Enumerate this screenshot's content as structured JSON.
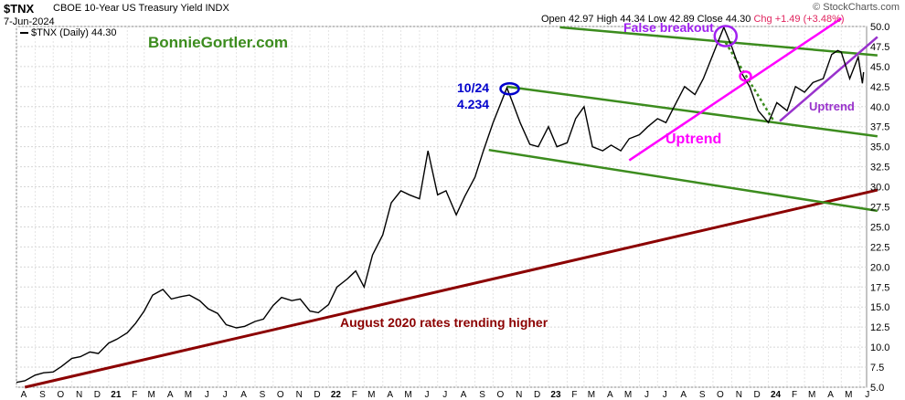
{
  "header": {
    "ticker": "$TNX",
    "description": "CBOE 10-Year US Treasury Yield INDX",
    "date": "7-Jun-2024",
    "watermark": "© StockCharts.com",
    "ohlc": {
      "open": "Open 42.97",
      "high": "High 44.34",
      "low": "Low 42.89",
      "close": "Close 44.30",
      "change": "Chg +1.49 (+3.48%)"
    },
    "legend": "$TNX (Daily) 44.30"
  },
  "annotations": {
    "site": "BonnieGortler.com",
    "peak_date": "10/24",
    "peak_value": "4.234",
    "false_breakout": "False breakout",
    "uptrend_main": "Uptrend",
    "uptrend_recent": "Uptrend",
    "long_trend": "August 2020 rates trending higher"
  },
  "colors": {
    "price": "#000000",
    "channel": "#3c8c1e",
    "long_trend": "#8b0000",
    "uptrend_main": "#ff00ff",
    "uptrend_recent": "#9932cc",
    "peak_marker": "#0000cc",
    "false_breakout": "#a020f0",
    "watermark_green": "#3c8c1e"
  },
  "chart_data": {
    "type": "line",
    "title": "$TNX CBOE 10-Year US Treasury Yield INDX",
    "ylim": [
      5.0,
      50.0
    ],
    "y_axis_side": "right",
    "y_ticks": [
      "5.0",
      "7.5",
      "10.0",
      "12.5",
      "15.0",
      "17.5",
      "20.0",
      "22.5",
      "25.0",
      "27.5",
      "30.0",
      "32.5",
      "35.0",
      "37.5",
      "40.0",
      "42.5",
      "45.0",
      "47.5",
      "50.0"
    ],
    "x_ticks": [
      "A",
      "S",
      "O",
      "N",
      "D",
      "21",
      "F",
      "M",
      "A",
      "M",
      "J",
      "J",
      "A",
      "S",
      "O",
      "N",
      "D",
      "22",
      "F",
      "M",
      "A",
      "M",
      "J",
      "J",
      "A",
      "S",
      "O",
      "N",
      "D",
      "23",
      "F",
      "M",
      "A",
      "M",
      "J",
      "J",
      "A",
      "S",
      "O",
      "N",
      "D",
      "24",
      "F",
      "M",
      "A",
      "M",
      "J"
    ],
    "x_start": "2020-08",
    "x_end": "2024-06",
    "series": [
      {
        "values": [
          [
            "2020-08-01",
            5.6
          ],
          [
            "2020-08-15",
            5.8
          ],
          [
            "2020-09-01",
            6.5
          ],
          [
            "2020-09-15",
            6.8
          ],
          [
            "2020-10-01",
            6.9
          ],
          [
            "2020-10-15",
            7.6
          ],
          [
            "2020-11-01",
            8.6
          ],
          [
            "2020-11-15",
            8.8
          ],
          [
            "2020-12-01",
            9.4
          ],
          [
            "2020-12-15",
            9.2
          ],
          [
            "2021-01-01",
            10.5
          ],
          [
            "2021-01-15",
            11.0
          ],
          [
            "2021-02-01",
            11.8
          ],
          [
            "2021-02-15",
            13.0
          ],
          [
            "2021-03-01",
            14.5
          ],
          [
            "2021-03-15",
            16.5
          ],
          [
            "2021-04-01",
            17.2
          ],
          [
            "2021-04-15",
            16.0
          ],
          [
            "2021-05-01",
            16.3
          ],
          [
            "2021-05-15",
            16.5
          ],
          [
            "2021-06-01",
            15.8
          ],
          [
            "2021-06-15",
            14.8
          ],
          [
            "2021-07-01",
            14.2
          ],
          [
            "2021-07-15",
            12.8
          ],
          [
            "2021-08-01",
            12.4
          ],
          [
            "2021-08-15",
            12.6
          ],
          [
            "2021-09-01",
            13.2
          ],
          [
            "2021-09-15",
            13.5
          ],
          [
            "2021-10-01",
            15.2
          ],
          [
            "2021-10-15",
            16.2
          ],
          [
            "2021-11-01",
            15.8
          ],
          [
            "2021-11-15",
            16.0
          ],
          [
            "2021-12-01",
            14.5
          ],
          [
            "2021-12-15",
            14.3
          ],
          [
            "2022-01-01",
            15.3
          ],
          [
            "2022-01-15",
            17.5
          ],
          [
            "2022-02-01",
            18.5
          ],
          [
            "2022-02-15",
            19.5
          ],
          [
            "2022-03-01",
            17.5
          ],
          [
            "2022-03-15",
            21.5
          ],
          [
            "2022-04-01",
            24.0
          ],
          [
            "2022-04-15",
            28.0
          ],
          [
            "2022-05-01",
            29.5
          ],
          [
            "2022-05-15",
            29.0
          ],
          [
            "2022-06-01",
            28.5
          ],
          [
            "2022-06-15",
            34.5
          ],
          [
            "2022-07-01",
            29.0
          ],
          [
            "2022-07-15",
            29.5
          ],
          [
            "2022-08-01",
            26.5
          ],
          [
            "2022-08-15",
            28.8
          ],
          [
            "2022-09-01",
            31.2
          ],
          [
            "2022-09-15",
            34.5
          ],
          [
            "2022-10-01",
            38.0
          ],
          [
            "2022-10-24",
            42.34
          ],
          [
            "2022-11-01",
            40.8
          ],
          [
            "2022-11-15",
            38.0
          ],
          [
            "2022-12-01",
            35.3
          ],
          [
            "2022-12-15",
            35.0
          ],
          [
            "2023-01-01",
            37.5
          ],
          [
            "2023-01-15",
            35.0
          ],
          [
            "2023-02-01",
            35.5
          ],
          [
            "2023-02-15",
            38.5
          ],
          [
            "2023-03-01",
            40.0
          ],
          [
            "2023-03-15",
            35.0
          ],
          [
            "2023-04-01",
            34.5
          ],
          [
            "2023-04-15",
            35.2
          ],
          [
            "2023-05-01",
            34.5
          ],
          [
            "2023-05-15",
            36.0
          ],
          [
            "2023-06-01",
            36.5
          ],
          [
            "2023-06-15",
            37.5
          ],
          [
            "2023-07-01",
            38.5
          ],
          [
            "2023-07-15",
            38.0
          ],
          [
            "2023-08-01",
            40.5
          ],
          [
            "2023-08-15",
            42.5
          ],
          [
            "2023-09-01",
            41.5
          ],
          [
            "2023-09-15",
            43.5
          ],
          [
            "2023-10-01",
            46.5
          ],
          [
            "2023-10-19",
            49.9
          ],
          [
            "2023-11-01",
            47.5
          ],
          [
            "2023-11-15",
            44.5
          ],
          [
            "2023-12-01",
            42.5
          ],
          [
            "2023-12-15",
            39.5
          ],
          [
            "2024-01-01",
            38.0
          ],
          [
            "2024-01-15",
            40.5
          ],
          [
            "2024-02-01",
            39.5
          ],
          [
            "2024-02-15",
            42.5
          ],
          [
            "2024-03-01",
            41.8
          ],
          [
            "2024-03-15",
            43.0
          ],
          [
            "2024-04-01",
            43.5
          ],
          [
            "2024-04-15",
            46.5
          ],
          [
            "2024-04-25",
            47.0
          ],
          [
            "2024-05-01",
            46.8
          ],
          [
            "2024-05-15",
            43.5
          ],
          [
            "2024-05-29",
            46.2
          ],
          [
            "2024-06-05",
            42.9
          ],
          [
            "2024-06-07",
            44.3
          ]
        ]
      }
    ]
  }
}
